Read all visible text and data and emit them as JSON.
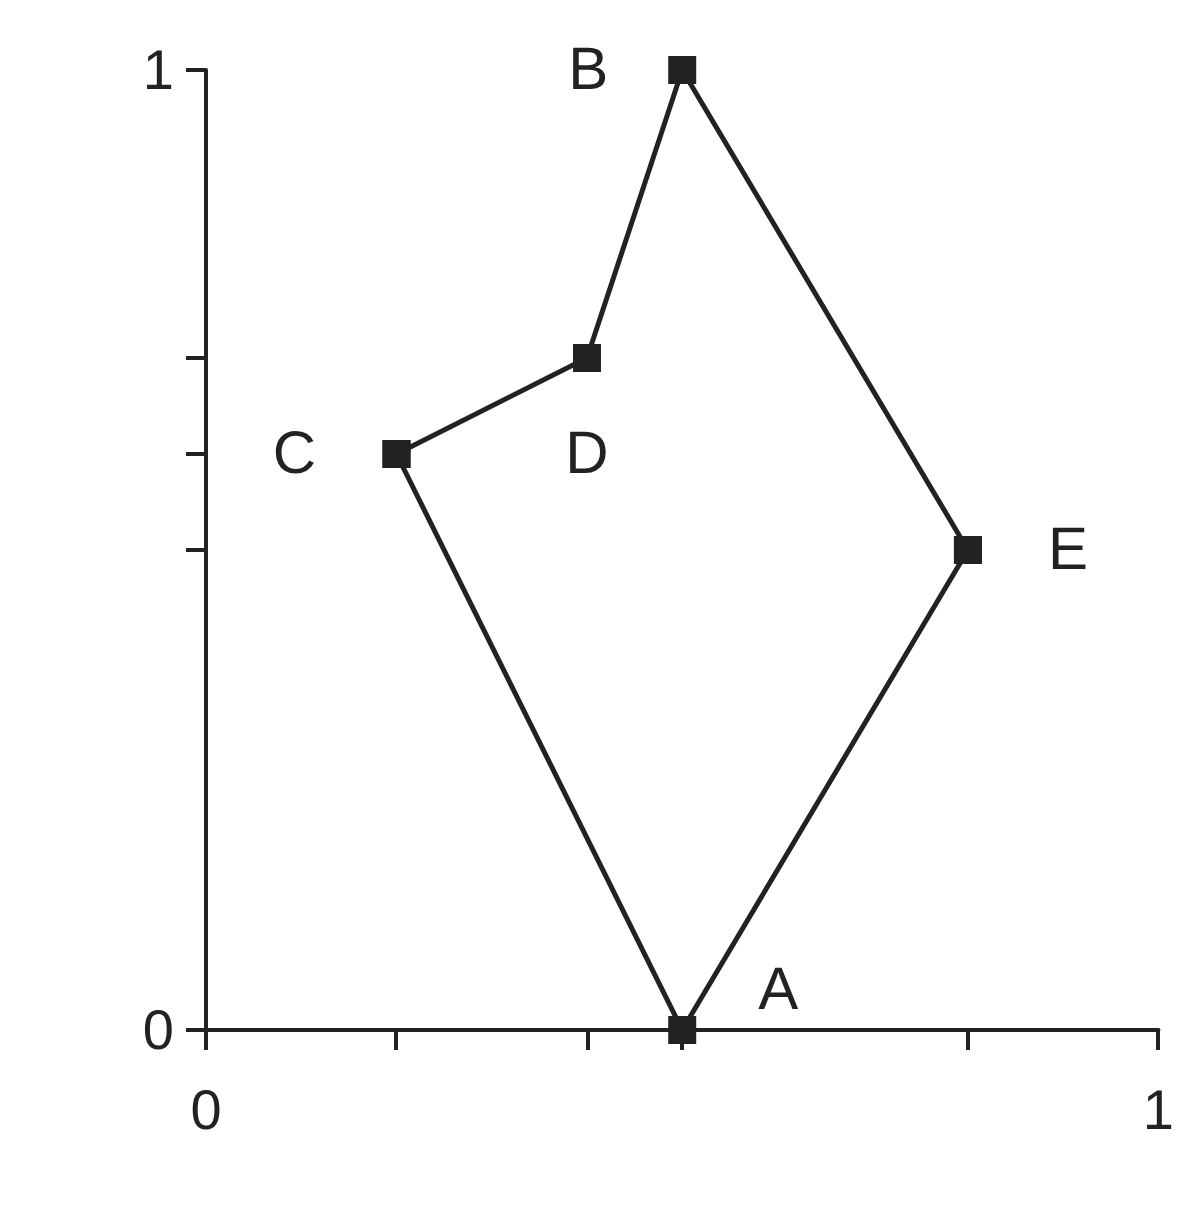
{
  "chart_data": {
    "type": "line",
    "series": [
      {
        "color": "#222222",
        "x": [
          0.2,
          0.4,
          0.5,
          0.8
        ],
        "values": [
          0.6,
          0.7,
          1,
          0.5
        ]
      },
      {
        "color": "#222222",
        "x": [
          0.2,
          0.5,
          0.8
        ],
        "values": [
          0.6,
          0,
          0.5
        ]
      }
    ],
    "xlim": [
      0,
      1
    ],
    "ylim": [
      0,
      1
    ],
    "xticks": [
      0,
      {
        "value": 0.2,
        "label": null
      },
      {
        "value": 0.4,
        "label": null
      },
      {
        "value": 0.5,
        "label": null
      },
      {
        "value": 0.8,
        "label": null
      },
      1
    ],
    "yticks": [
      0,
      {
        "value": 0.5,
        "label": null
      },
      {
        "value": 0.6,
        "label": null
      },
      {
        "value": 0.7,
        "label": null
      },
      1
    ],
    "annotations": [
      {
        "text": "A",
        "x": 0.5,
        "y": 0
      },
      {
        "text": "B",
        "x": 0.5,
        "y": 1
      },
      {
        "text": "C",
        "x": 0.2,
        "y": 0.6
      },
      {
        "text": "D",
        "x": 0.4,
        "y": 0.7
      },
      {
        "text": "E",
        "x": 0.8,
        "y": 0.5
      }
    ],
    "grid": false,
    "marker": "square",
    "line_style": "solid"
  }
}
